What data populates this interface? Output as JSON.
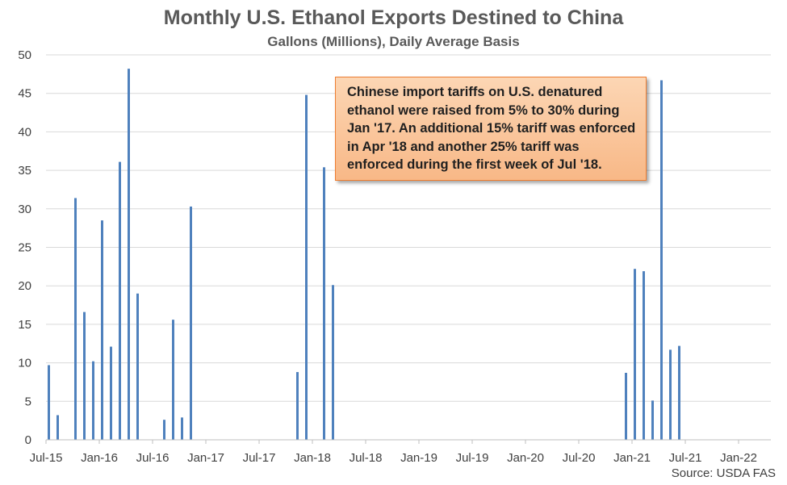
{
  "chart_data": {
    "type": "bar",
    "title": "Monthly U.S. Ethanol Exports Destined to China",
    "subtitle": "Gallons (Millions), Daily Average Basis",
    "source": "Source: USDA FAS",
    "ylim": [
      0,
      50
    ],
    "y_ticks": [
      "0",
      "5",
      "10",
      "15",
      "20",
      "25",
      "30",
      "35",
      "40",
      "45",
      "50"
    ],
    "x_ticks": [
      "Jul-15",
      "Jan-16",
      "Jul-16",
      "Jan-17",
      "Jul-17",
      "Jan-18",
      "Jul-18",
      "Jan-19",
      "Jul-19",
      "Jan-20",
      "Jul-20",
      "Jan-21",
      "Jul-21",
      "Jan-22"
    ],
    "x_start": "2015-07",
    "grid": "horizontal",
    "bar_color": "#4f81bd",
    "annotation": "Chinese import tariffs on U.S. denatured ethanol were raised from 5% to 30% during Jan '17. An additional 15% tariff was enforced in Apr '18 and another 25% tariff was enforced during the first week of Jul '18.",
    "series": [
      {
        "values": [
          9.7,
          3.2,
          0,
          31.4,
          16.6,
          10.2,
          28.5,
          12.1,
          36.1,
          48.2,
          19.0,
          0,
          0,
          2.6,
          15.6,
          2.9,
          30.3,
          0,
          0,
          0,
          0,
          0,
          0,
          0,
          0,
          0,
          0,
          0,
          8.8,
          44.8,
          0,
          35.4,
          20.1,
          0,
          0,
          0,
          0,
          0,
          0,
          0,
          0,
          0,
          0,
          0,
          0,
          0,
          0,
          0,
          0,
          0,
          0,
          0,
          0,
          0,
          0,
          0,
          0,
          0,
          0,
          0,
          0,
          0,
          0,
          0,
          0,
          8.7,
          22.2,
          21.9,
          5.1,
          46.7,
          11.7,
          12.2,
          0,
          0,
          0,
          0,
          0,
          0,
          0,
          0,
          0
        ]
      }
    ]
  }
}
